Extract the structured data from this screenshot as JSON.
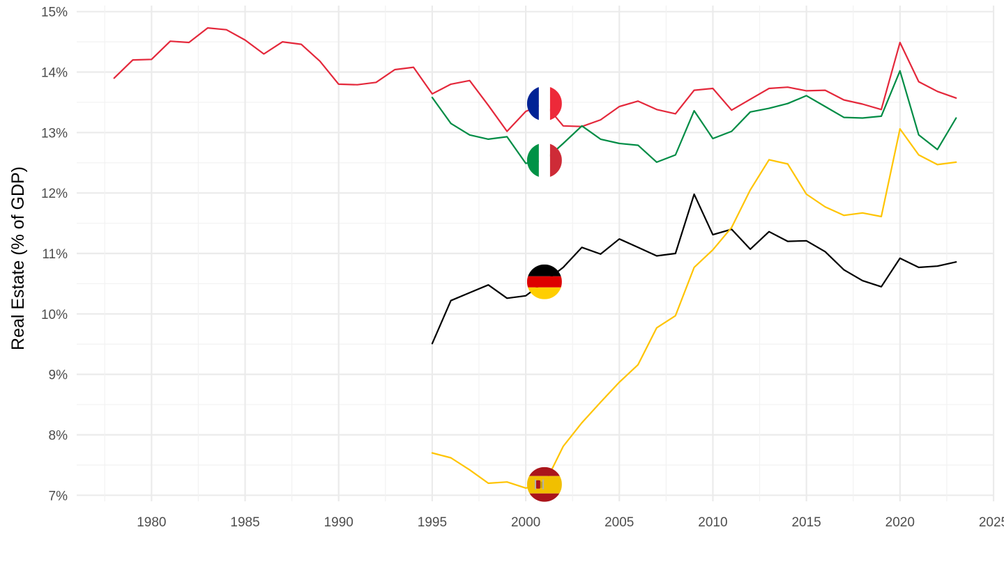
{
  "chart_data": {
    "type": "line",
    "title": "",
    "xlabel": "",
    "ylabel": "Real Estate (% of GDP)",
    "xlim": [
      1976,
      2025
    ],
    "ylim": [
      6.9,
      15.1
    ],
    "x_ticks": [
      1980,
      1985,
      1990,
      1995,
      2000,
      2005,
      2010,
      2015,
      2020,
      2025
    ],
    "x_tick_labels": [
      "1980",
      "1985",
      "1990",
      "1995",
      "2000",
      "2005",
      "2010",
      "2015",
      "2020",
      "2025"
    ],
    "y_ticks": [
      7,
      8,
      9,
      10,
      11,
      12,
      13,
      14,
      15
    ],
    "y_tick_labels": [
      "7%",
      "8%",
      "9%",
      "10%",
      "11%",
      "12%",
      "13%",
      "14%",
      "15%"
    ],
    "grid": true,
    "legend": "flag icons on lines at x=2001",
    "series": [
      {
        "color": "#E4283B",
        "icon": "france-flag-icon",
        "x": [
          1978,
          1979,
          1980,
          1981,
          1982,
          1983,
          1984,
          1985,
          1986,
          1987,
          1988,
          1989,
          1990,
          1991,
          1992,
          1993,
          1994,
          1995,
          1996,
          1997,
          1998,
          1999,
          2000,
          2001,
          2002,
          2003,
          2004,
          2005,
          2006,
          2007,
          2008,
          2009,
          2010,
          2011,
          2012,
          2013,
          2014,
          2015,
          2016,
          2017,
          2018,
          2019,
          2020,
          2021,
          2022,
          2023
        ],
        "y": [
          13.9,
          14.2,
          14.21,
          14.51,
          14.49,
          14.73,
          14.7,
          14.53,
          14.3,
          14.5,
          14.46,
          14.18,
          13.8,
          13.79,
          13.83,
          14.04,
          14.08,
          13.64,
          13.8,
          13.86,
          13.45,
          13.02,
          13.35,
          13.48,
          13.11,
          13.1,
          13.21,
          13.43,
          13.52,
          13.38,
          13.31,
          13.7,
          13.73,
          13.37,
          13.55,
          13.73,
          13.75,
          13.69,
          13.7,
          13.54,
          13.47,
          13.38,
          14.49,
          13.84,
          13.68,
          13.57
        ]
      },
      {
        "color": "#008C45",
        "icon": "italy-flag-icon",
        "x": [
          1995,
          1996,
          1997,
          1998,
          1999,
          2000,
          2001,
          2002,
          2003,
          2004,
          2005,
          2006,
          2007,
          2008,
          2009,
          2010,
          2011,
          2012,
          2013,
          2014,
          2015,
          2016,
          2017,
          2018,
          2019,
          2020,
          2021,
          2022,
          2023
        ],
        "y": [
          13.58,
          13.15,
          12.96,
          12.89,
          12.93,
          12.49,
          12.54,
          12.82,
          13.11,
          12.89,
          12.82,
          12.79,
          12.51,
          12.63,
          13.36,
          12.9,
          13.02,
          13.34,
          13.4,
          13.48,
          13.61,
          13.43,
          13.25,
          13.24,
          13.27,
          14.02,
          12.96,
          12.72,
          13.24
        ]
      },
      {
        "color": "#000000",
        "icon": "germany-flag-icon",
        "x": [
          1995,
          1996,
          1997,
          1998,
          1999,
          2000,
          2001,
          2002,
          2003,
          2004,
          2005,
          2006,
          2007,
          2008,
          2009,
          2010,
          2011,
          2012,
          2013,
          2014,
          2015,
          2016,
          2017,
          2018,
          2019,
          2020,
          2021,
          2022,
          2023
        ],
        "y": [
          9.51,
          10.22,
          10.35,
          10.48,
          10.26,
          10.3,
          10.53,
          10.77,
          11.1,
          10.99,
          11.24,
          11.1,
          10.96,
          11.0,
          11.98,
          11.31,
          11.4,
          11.07,
          11.36,
          11.2,
          11.21,
          11.03,
          10.73,
          10.55,
          10.45,
          10.92,
          10.77,
          10.79,
          10.86
        ]
      },
      {
        "color": "#FFC400",
        "icon": "spain-flag-icon",
        "x": [
          1995,
          1996,
          1997,
          1998,
          1999,
          2000,
          2001,
          2002,
          2003,
          2004,
          2005,
          2006,
          2007,
          2008,
          2009,
          2010,
          2011,
          2012,
          2013,
          2014,
          2015,
          2016,
          2017,
          2018,
          2019,
          2020,
          2021,
          2022,
          2023
        ],
        "y": [
          7.7,
          7.62,
          7.42,
          7.2,
          7.22,
          7.12,
          7.18,
          7.81,
          8.2,
          8.54,
          8.87,
          9.16,
          9.77,
          9.97,
          10.77,
          11.06,
          11.43,
          12.05,
          12.55,
          12.48,
          11.98,
          11.77,
          11.63,
          11.67,
          11.61,
          13.06,
          12.63,
          12.47,
          12.51
        ]
      }
    ],
    "flags_x": 2001
  }
}
